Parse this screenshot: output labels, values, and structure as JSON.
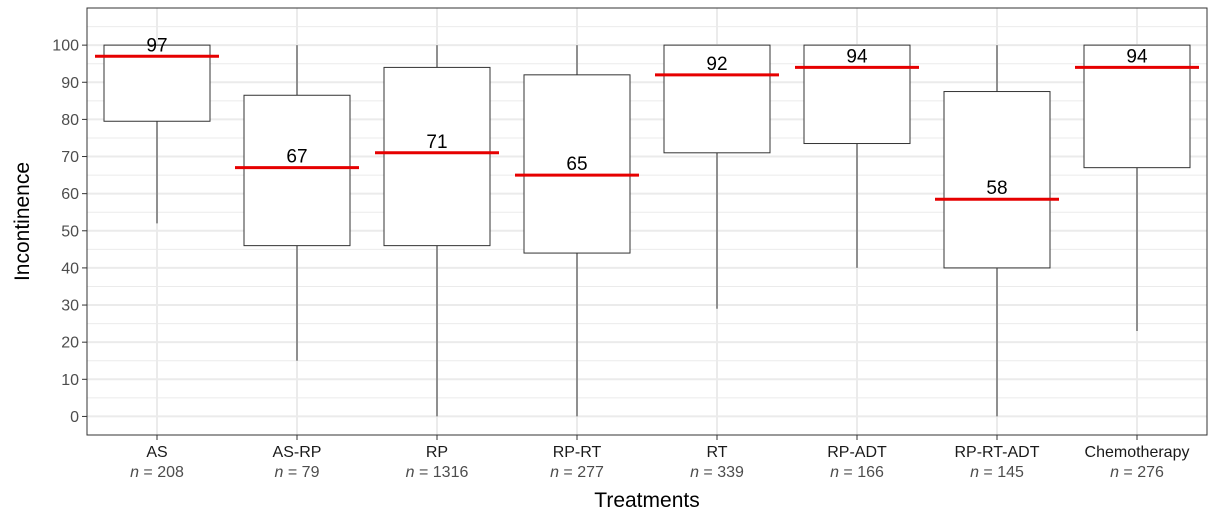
{
  "chart_data": {
    "type": "boxplot",
    "xlabel": "Treatments",
    "ylabel": "Incontinence",
    "ylim": [
      -5,
      110
    ],
    "yticks": [
      0,
      10,
      20,
      30,
      40,
      50,
      60,
      70,
      80,
      90,
      100
    ],
    "grid": true,
    "colors": {
      "median": "#e60000",
      "box": "#333333",
      "grid": "#ebebeb",
      "panel_border": "#333333"
    },
    "n_prefix": "n",
    "categories": [
      {
        "name": "AS",
        "n_text": " = 208",
        "n": 208,
        "min": 52,
        "q1": 79.5,
        "median": 97,
        "q3": 100,
        "max": 100,
        "median_label": "97"
      },
      {
        "name": "AS-RP",
        "n_text": " = 79",
        "n": 79,
        "min": 15,
        "q1": 46,
        "median": 67,
        "q3": 86.5,
        "max": 100,
        "median_label": "67"
      },
      {
        "name": "RP",
        "n_text": " = 1316",
        "n": 1316,
        "min": 0,
        "q1": 46,
        "median": 71,
        "q3": 94,
        "max": 100,
        "median_label": "71"
      },
      {
        "name": "RP-RT",
        "n_text": " = 277",
        "n": 277,
        "min": 0,
        "q1": 44,
        "median": 65,
        "q3": 92,
        "max": 100,
        "median_label": "65"
      },
      {
        "name": "RT",
        "n_text": " = 339",
        "n": 339,
        "min": 29,
        "q1": 71,
        "median": 92,
        "q3": 100,
        "max": 100,
        "median_label": "92"
      },
      {
        "name": "RP-ADT",
        "n_text": " = 166",
        "n": 166,
        "min": 40,
        "q1": 73.5,
        "median": 94,
        "q3": 100,
        "max": 100,
        "median_label": "94"
      },
      {
        "name": "RP-RT-ADT",
        "n_text": " = 145",
        "n": 145,
        "min": 0,
        "q1": 40,
        "median": 58.5,
        "q3": 87.5,
        "max": 100,
        "median_label": "58"
      },
      {
        "name": "Chemotherapy",
        "n_text": " = 276",
        "n": 276,
        "min": 23,
        "q1": 67,
        "median": 94,
        "q3": 100,
        "max": 100,
        "median_label": "94"
      }
    ]
  }
}
